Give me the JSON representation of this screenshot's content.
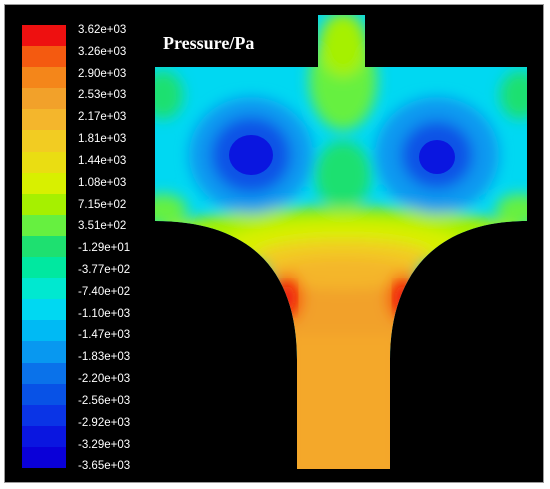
{
  "figure": {
    "title": "Pressure/Pa",
    "colorbar": {
      "labels": [
        "3.62e+03",
        "3.26e+03",
        "2.90e+03",
        "2.53e+03",
        "2.17e+03",
        "1.81e+03",
        "1.44e+03",
        "1.08e+03",
        "7.15e+02",
        "3.51e+02",
        "-1.29e+01",
        "-3.77e+02",
        "-7.40e+02",
        "-1.10e+03",
        "-1.47e+03",
        "-1.83e+03",
        "-2.20e+03",
        "-2.56e+03",
        "-2.92e+03",
        "-3.29e+03",
        "-3.65e+03"
      ],
      "colors": [
        "#ee1010",
        "#f45a10",
        "#f4861a",
        "#f2a12a",
        "#f4b62c",
        "#f2cc22",
        "#eadd12",
        "#d8f000",
        "#a6f000",
        "#66f040",
        "#1ee070",
        "#00e8a0",
        "#00e8d0",
        "#00d8f2",
        "#00baf4",
        "#0898f0",
        "#0a72ea",
        "#0852e6",
        "#0a34e6",
        "#0a16e0",
        "#0a00d8"
      ]
    }
  }
}
